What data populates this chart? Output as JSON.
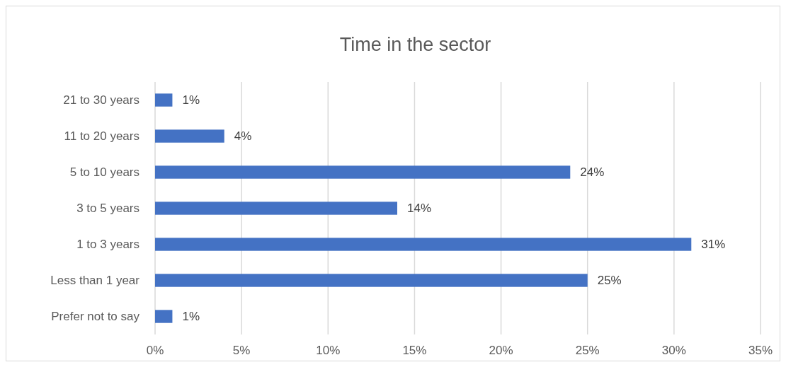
{
  "chart_data": {
    "type": "bar",
    "orientation": "horizontal",
    "title": "Time in the sector",
    "categories": [
      "21 to 30 years",
      "11 to 20 years",
      "5 to 10 years",
      "3 to 5 years",
      "1 to 3 years",
      "Less than 1 year",
      "Prefer not to say"
    ],
    "values": [
      1,
      4,
      24,
      14,
      31,
      25,
      1
    ],
    "value_labels": [
      "1%",
      "4%",
      "24%",
      "14%",
      "31%",
      "25%",
      "1%"
    ],
    "color": "#4472c4",
    "xlim": [
      0,
      35
    ],
    "xticks": [
      {
        "value": 0,
        "label": "0%"
      },
      {
        "value": 5,
        "label": "5%"
      },
      {
        "value": 10,
        "label": "10%"
      },
      {
        "value": 15,
        "label": "15%"
      },
      {
        "value": 20,
        "label": "20%"
      },
      {
        "value": 25,
        "label": "25%"
      },
      {
        "value": 30,
        "label": "30%"
      },
      {
        "value": 35,
        "label": "35%"
      }
    ],
    "grid": "x"
  }
}
